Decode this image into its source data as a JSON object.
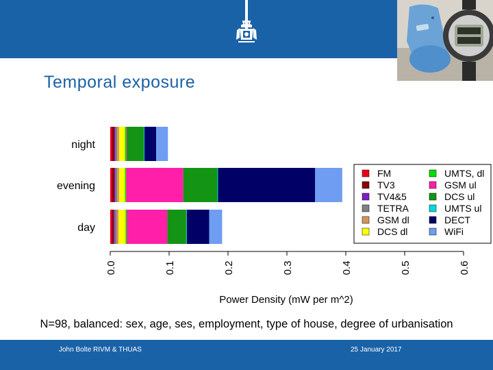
{
  "slide": {
    "title": "Temporal exposure",
    "subtitle": "N=98, balanced: sex, age, ses, employment, type of house, degree of urbanisation",
    "footer_left": "John Bolte RIVM & THUAS",
    "footer_right": "25 January 2017",
    "brand_color": "#1a62a8"
  },
  "chart_data": {
    "type": "bar",
    "orientation": "horizontal",
    "stacked": true,
    "categories": [
      "night",
      "evening",
      "day"
    ],
    "xlabel": "Power Density (mW per m^2)",
    "ylabel": "",
    "xlim": [
      0,
      0.6
    ],
    "xticks": [
      "0.0",
      "0.1",
      "0.2",
      "0.3",
      "0.4",
      "0.5",
      "0.6"
    ],
    "grid": false,
    "legend_position": "right",
    "series": [
      {
        "name": "FM",
        "color": "#e8001c",
        "values": [
          0.003,
          0.003,
          0.003
        ]
      },
      {
        "name": "TV3",
        "color": "#8b0000",
        "values": [
          0.004,
          0.004,
          0.003
        ]
      },
      {
        "name": "TV4&5",
        "color": "#7b1fc8",
        "values": [
          0.002,
          0.002,
          0.002
        ]
      },
      {
        "name": "TETRA",
        "color": "#808080",
        "values": [
          0.003,
          0.003,
          0.003
        ]
      },
      {
        "name": "GSM dl",
        "color": "#d4955a",
        "values": [
          0.003,
          0.003,
          0.003
        ]
      },
      {
        "name": "DCS dl",
        "color": "#ffff00",
        "values": [
          0.01,
          0.01,
          0.012
        ]
      },
      {
        "name": "UMTS, dl",
        "color": "#00dd00",
        "values": [
          0.002,
          0.002,
          0.002
        ]
      },
      {
        "name": "GSM ul",
        "color": "#ff1fa8",
        "values": [
          0.001,
          0.097,
          0.069
        ]
      },
      {
        "name": "DCS ul",
        "color": "#149414",
        "values": [
          0.029,
          0.058,
          0.032
        ]
      },
      {
        "name": "UMTS ul",
        "color": "#00d9d9",
        "values": [
          0.001,
          0.001,
          0.001
        ]
      },
      {
        "name": "DECT",
        "color": "#000066",
        "values": [
          0.02,
          0.165,
          0.038
        ]
      },
      {
        "name": "WiFi",
        "color": "#6f9df2",
        "values": [
          0.02,
          0.046,
          0.022
        ]
      }
    ]
  }
}
